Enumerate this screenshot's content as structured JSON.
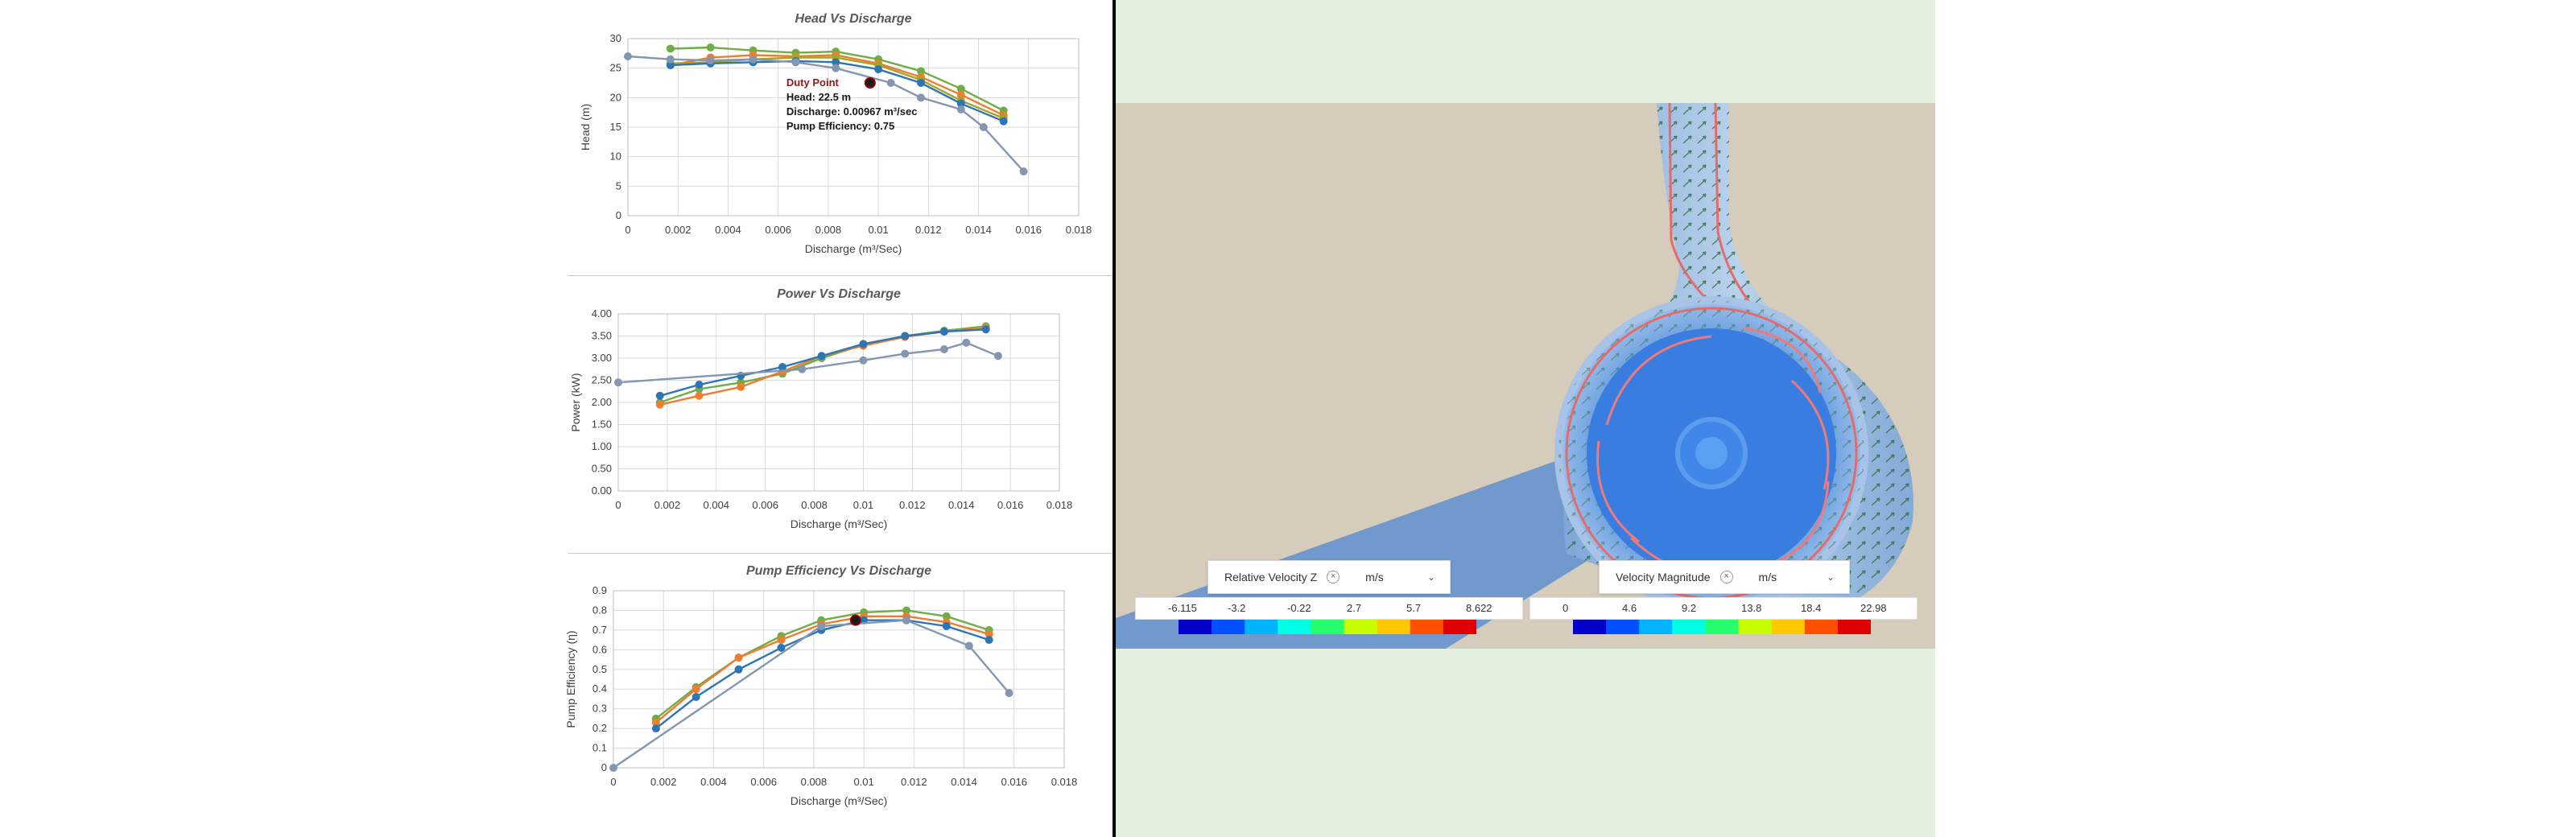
{
  "charts": [
    {
      "type": "line",
      "title": "Head Vs Discharge",
      "xlabel": "Discharge (m³/Sec)",
      "ylabel": "Head (m)",
      "xlim": [
        0,
        0.018
      ],
      "ylim": [
        0,
        30
      ],
      "x_ticks": [
        "0",
        "0.002",
        "0.004",
        "0.006",
        "0.008",
        "0.01",
        "0.012",
        "0.014",
        "0.016",
        "0.018"
      ],
      "y_ticks": [
        "0",
        "5",
        "10",
        "15",
        "20",
        "25",
        "30"
      ],
      "grid": true,
      "series": [
        {
          "color": "#70ad47",
          "points": [
            [
              0.0017,
              28.3
            ],
            [
              0.0033,
              28.5
            ],
            [
              0.005,
              28.0
            ],
            [
              0.0067,
              27.6
            ],
            [
              0.0083,
              27.8
            ],
            [
              0.01,
              26.5
            ],
            [
              0.0117,
              24.5
            ],
            [
              0.0133,
              21.5
            ],
            [
              0.015,
              17.8
            ]
          ]
        },
        {
          "color": "#ed7d31",
          "points": [
            [
              0.0017,
              25.5
            ],
            [
              0.0033,
              26.8
            ],
            [
              0.005,
              27.2
            ],
            [
              0.0067,
              27.0
            ],
            [
              0.0083,
              27.2
            ],
            [
              0.01,
              25.8
            ],
            [
              0.0117,
              23.5
            ],
            [
              0.0133,
              20.5
            ],
            [
              0.015,
              17.0
            ]
          ]
        },
        {
          "color": "#a5a52a",
          "points": [
            [
              0.0017,
              25.8
            ],
            [
              0.0033,
              26.0
            ],
            [
              0.005,
              26.5
            ],
            [
              0.0067,
              26.8
            ],
            [
              0.0083,
              26.8
            ],
            [
              0.01,
              25.5
            ],
            [
              0.0117,
              23.0
            ],
            [
              0.0133,
              19.5
            ],
            [
              0.015,
              16.5
            ]
          ]
        },
        {
          "color": "#2e75b6",
          "points": [
            [
              0.0017,
              25.5
            ],
            [
              0.0033,
              25.8
            ],
            [
              0.005,
              26.0
            ],
            [
              0.0067,
              26.2
            ],
            [
              0.0083,
              26.0
            ],
            [
              0.01,
              24.8
            ],
            [
              0.0117,
              22.5
            ],
            [
              0.0133,
              19.0
            ],
            [
              0.015,
              16.0
            ]
          ]
        },
        {
          "color": "#8496b0",
          "points": [
            [
              0,
              27.0
            ],
            [
              0.0017,
              26.5
            ],
            [
              0.0033,
              26.3
            ],
            [
              0.005,
              26.5
            ],
            [
              0.0067,
              26.0
            ],
            [
              0.0083,
              25.0
            ],
            [
              0.0105,
              22.5
            ],
            [
              0.0117,
              20.0
            ],
            [
              0.0133,
              18.0
            ],
            [
              0.0142,
              15.0
            ],
            [
              0.0158,
              7.5
            ]
          ]
        }
      ],
      "duty_point": {
        "x": 0.00967,
        "y": 22.5,
        "label": "Duty Point",
        "lines": [
          "Head: 22.5 m",
          "Discharge: 0.00967 m³/sec",
          "Pump Efficiency: 0.75"
        ]
      }
    },
    {
      "type": "line",
      "title": "Power Vs Discharge",
      "xlabel": "Discharge (m³/Sec)",
      "ylabel": "Power (kW)",
      "xlim": [
        0,
        0.018
      ],
      "ylim": [
        0,
        4
      ],
      "x_ticks": [
        "0",
        "0.002",
        "0.004",
        "0.006",
        "0.008",
        "0.01",
        "0.012",
        "0.014",
        "0.016",
        "0.018"
      ],
      "y_ticks": [
        "0.00",
        "0.50",
        "1.00",
        "1.50",
        "2.00",
        "2.50",
        "3.00",
        "3.50",
        "4.00"
      ],
      "grid": true,
      "series": [
        {
          "color": "#70ad47",
          "points": [
            [
              0.0017,
              2.0
            ],
            [
              0.0033,
              2.3
            ],
            [
              0.005,
              2.45
            ],
            [
              0.0067,
              2.65
            ],
            [
              0.0083,
              3.0
            ],
            [
              0.01,
              3.3
            ],
            [
              0.0117,
              3.5
            ],
            [
              0.0133,
              3.62
            ],
            [
              0.015,
              3.72
            ]
          ]
        },
        {
          "color": "#ed7d31",
          "points": [
            [
              0.0017,
              1.95
            ],
            [
              0.0033,
              2.15
            ],
            [
              0.005,
              2.35
            ],
            [
              0.0067,
              2.7
            ],
            [
              0.0083,
              3.05
            ],
            [
              0.01,
              3.28
            ],
            [
              0.0117,
              3.48
            ],
            [
              0.0133,
              3.6
            ],
            [
              0.015,
              3.68
            ]
          ]
        },
        {
          "color": "#2e75b6",
          "points": [
            [
              0.0017,
              2.15
            ],
            [
              0.0033,
              2.4
            ],
            [
              0.005,
              2.6
            ],
            [
              0.0067,
              2.8
            ],
            [
              0.0083,
              3.05
            ],
            [
              0.01,
              3.32
            ],
            [
              0.0117,
              3.5
            ],
            [
              0.0133,
              3.6
            ],
            [
              0.015,
              3.65
            ]
          ]
        },
        {
          "color": "#8496b0",
          "points": [
            [
              0,
              2.45
            ],
            [
              0.0075,
              2.75
            ],
            [
              0.01,
              2.95
            ],
            [
              0.0117,
              3.1
            ],
            [
              0.0133,
              3.2
            ],
            [
              0.0142,
              3.35
            ],
            [
              0.0155,
              3.05
            ]
          ]
        }
      ]
    },
    {
      "type": "line",
      "title": "Pump Efficiency Vs Discharge",
      "xlabel": "Discharge (m³/Sec)",
      "ylabel": "Pump Efficiency (η)",
      "xlim": [
        0,
        0.018
      ],
      "ylim": [
        0,
        0.9
      ],
      "x_ticks": [
        "0",
        "0.002",
        "0.004",
        "0.006",
        "0.008",
        "0.01",
        "0.012",
        "0.014",
        "0.016",
        "0.018"
      ],
      "y_ticks": [
        "0",
        "0.1",
        "0.2",
        "0.3",
        "0.4",
        "0.5",
        "0.6",
        "0.7",
        "0.8",
        "0.9"
      ],
      "grid": true,
      "series": [
        {
          "color": "#70ad47",
          "points": [
            [
              0.0017,
              0.25
            ],
            [
              0.0033,
              0.41
            ],
            [
              0.005,
              0.56
            ],
            [
              0.0067,
              0.67
            ],
            [
              0.0083,
              0.75
            ],
            [
              0.01,
              0.79
            ],
            [
              0.0117,
              0.8
            ],
            [
              0.0133,
              0.77
            ],
            [
              0.015,
              0.7
            ]
          ]
        },
        {
          "color": "#ed7d31",
          "points": [
            [
              0.0017,
              0.23
            ],
            [
              0.0033,
              0.4
            ],
            [
              0.005,
              0.56
            ],
            [
              0.0067,
              0.65
            ],
            [
              0.0083,
              0.73
            ],
            [
              0.01,
              0.77
            ],
            [
              0.0117,
              0.77
            ],
            [
              0.0133,
              0.74
            ],
            [
              0.015,
              0.68
            ]
          ]
        },
        {
          "color": "#2e75b6",
          "points": [
            [
              0.0017,
              0.2
            ],
            [
              0.0033,
              0.36
            ],
            [
              0.005,
              0.5
            ],
            [
              0.0067,
              0.61
            ],
            [
              0.0083,
              0.7
            ],
            [
              0.01,
              0.75
            ],
            [
              0.0117,
              0.75
            ],
            [
              0.0133,
              0.72
            ],
            [
              0.015,
              0.65
            ]
          ]
        },
        {
          "color": "#8496b0",
          "points": [
            [
              0,
              0.0
            ],
            [
              0.0083,
              0.72
            ],
            [
              0.0117,
              0.75
            ],
            [
              0.0142,
              0.62
            ],
            [
              0.0158,
              0.38
            ]
          ]
        }
      ],
      "duty_point": {
        "x": 0.00967,
        "y": 0.75
      }
    }
  ],
  "viewer": {
    "legends": [
      {
        "label": "Relative Velocity Z",
        "clear_icon": "close-icon",
        "unit": "m/s",
        "chevron": "chevron-down-icon",
        "ticks": [
          "-6.115",
          "-3.2",
          "-0.22",
          "2.7",
          "5.7",
          "8.622"
        ]
      },
      {
        "label": "Velocity Magnitude",
        "clear_icon": "close-icon",
        "unit": "m/s",
        "chevron": "chevron-down-icon",
        "ticks": [
          "0",
          "4.6",
          "9.2",
          "13.8",
          "18.4",
          "22.98"
        ]
      }
    ],
    "colormap": [
      "#0000c8",
      "#0050ff",
      "#00b4ff",
      "#00ffe6",
      "#28ff6e",
      "#c8ff00",
      "#ffc800",
      "#ff5000",
      "#e10000"
    ]
  }
}
